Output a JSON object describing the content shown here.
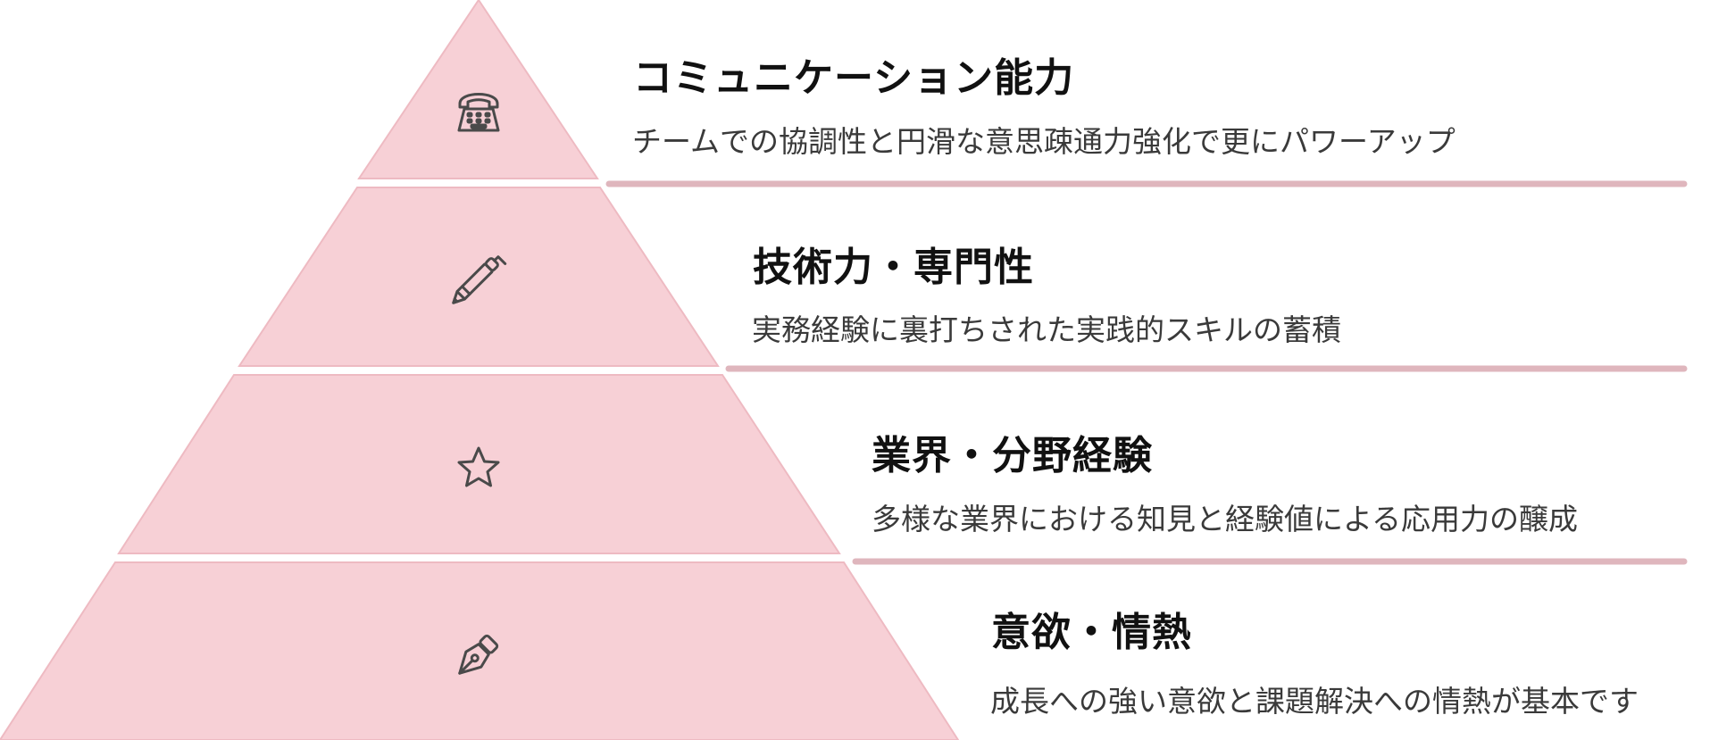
{
  "colors": {
    "tier_fill": "#f7d0d6",
    "tier_stroke": "#eebac2",
    "divider": "#dfb6bd",
    "icon": "#4a4a4a"
  },
  "tiers": [
    {
      "icon": "telephone-icon",
      "title": "コミュニケーション能力",
      "description": "チームでの協調性と円滑な意思疎通力強化で更にパワーアップ"
    },
    {
      "icon": "pencil-icon",
      "title": "技術力・専門性",
      "description": "実務経験に裏打ちされた実践的スキルの蓄積"
    },
    {
      "icon": "star-icon",
      "title": "業界・分野経験",
      "description": "多様な業界における知見と経験値による応用力の醸成"
    },
    {
      "icon": "fountain-pen-icon",
      "title": "意欲・情熱",
      "description": "成長への強い意欲と課題解決への情熱が基本です"
    }
  ]
}
